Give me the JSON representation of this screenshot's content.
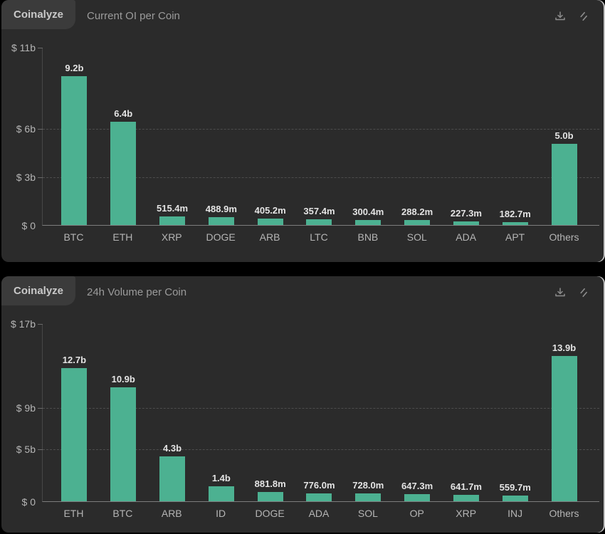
{
  "page": {
    "background": "#000000",
    "panel_background": "#2b2b2b"
  },
  "panels": [
    {
      "brand": "Coinalyze",
      "title": "Current OI per Coin",
      "toolbar": {
        "icons": [
          "download-icon",
          "link-icon"
        ]
      }
    },
    {
      "brand": "Coinalyze",
      "title": "24h Volume per Coin",
      "toolbar": {
        "icons": [
          "download-icon",
          "link-icon"
        ]
      }
    }
  ],
  "chart_data": [
    {
      "type": "bar",
      "title": "Current OI per Coin",
      "bar_color": "#4cb191",
      "grid": "horizontal-dashed",
      "legend": "none",
      "categories": [
        "BTC",
        "ETH",
        "XRP",
        "DOGE",
        "ARB",
        "LTC",
        "BNB",
        "SOL",
        "ADA",
        "APT",
        "Others"
      ],
      "values_billions": [
        9.2,
        6.4,
        0.5154,
        0.4889,
        0.4052,
        0.3574,
        0.3004,
        0.2882,
        0.2273,
        0.1827,
        5.0
      ],
      "value_labels": [
        "9.2b",
        "6.4b",
        "515.4m",
        "488.9m",
        "405.2m",
        "357.4m",
        "300.4m",
        "288.2m",
        "227.3m",
        "182.7m",
        "5.0b"
      ],
      "y_axis": {
        "max": 11,
        "ticks": [
          {
            "label": "$ 11b",
            "value": 11
          },
          {
            "label": "$ 6b",
            "value": 6
          },
          {
            "label": "$ 3b",
            "value": 3
          },
          {
            "label": "$ 0",
            "value": 0
          }
        ]
      }
    },
    {
      "type": "bar",
      "title": "24h Volume per Coin",
      "bar_color": "#4cb191",
      "grid": "horizontal-dashed",
      "legend": "none",
      "categories": [
        "ETH",
        "BTC",
        "ARB",
        "ID",
        "DOGE",
        "ADA",
        "SOL",
        "OP",
        "XRP",
        "INJ",
        "Others"
      ],
      "values_billions": [
        12.7,
        10.9,
        4.3,
        1.4,
        0.8818,
        0.776,
        0.728,
        0.6473,
        0.6417,
        0.5597,
        13.9
      ],
      "value_labels": [
        "12.7b",
        "10.9b",
        "4.3b",
        "1.4b",
        "881.8m",
        "776.0m",
        "728.0m",
        "647.3m",
        "641.7m",
        "559.7m",
        "13.9b"
      ],
      "y_axis": {
        "max": 17,
        "ticks": [
          {
            "label": "$ 17b",
            "value": 17
          },
          {
            "label": "$ 9b",
            "value": 9
          },
          {
            "label": "$ 5b",
            "value": 5
          },
          {
            "label": "$ 0",
            "value": 0
          }
        ]
      }
    }
  ]
}
